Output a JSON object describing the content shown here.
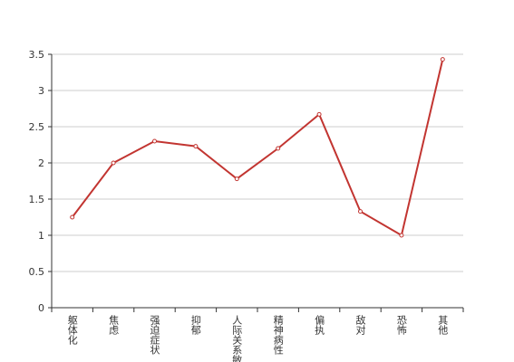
{
  "chart_data": {
    "type": "line",
    "categories": [
      "躯体化",
      "焦虑",
      "强迫症状",
      "抑郁",
      "人际关系敏感",
      "精神病性",
      "偏执",
      "敌对",
      "恐怖",
      "其他"
    ],
    "values": [
      1.25,
      2.0,
      2.3,
      2.23,
      1.78,
      2.2,
      2.67,
      1.33,
      1.0,
      3.43
    ],
    "color": "#c23531",
    "ylim": [
      0,
      3.5
    ],
    "yticks": [
      0,
      0.5,
      1,
      1.5,
      2,
      2.5,
      3,
      3.5
    ],
    "grid": true
  }
}
